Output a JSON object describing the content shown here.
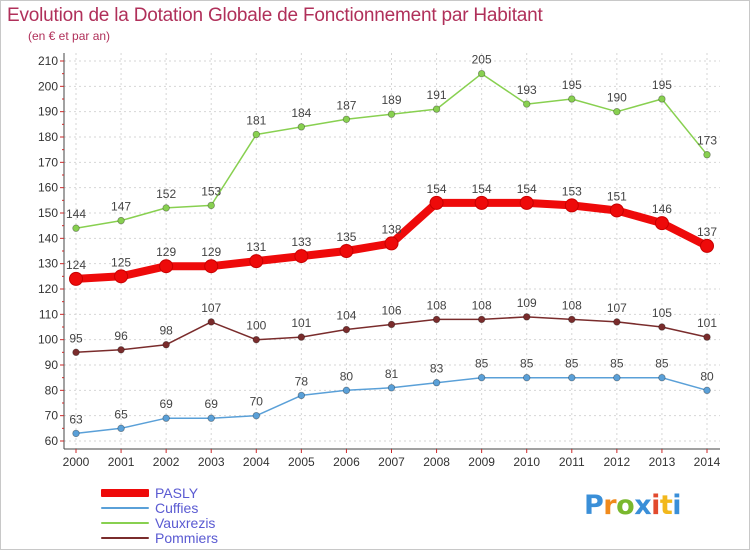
{
  "header": {
    "title": "Evolution de la Dotation Globale de Fonctionnement par Habitant",
    "subtitle": "(en € et par an)"
  },
  "logo": {
    "text": "Proxiti",
    "colors": [
      "#3a8fd8",
      "#f08a1c",
      "#7ab82e",
      "#3a8fd8",
      "#e24a2e",
      "#f2b81c",
      "#3a8fd8"
    ]
  },
  "chart_data": {
    "type": "line",
    "title": "Evolution de la Dotation Globale de Fonctionnement par Habitant",
    "subtitle": "(en € et par an)",
    "xlabel": "",
    "ylabel": "",
    "x": [
      "2000",
      "2001",
      "2002",
      "2003",
      "2004",
      "2005",
      "2006",
      "2007",
      "2008",
      "2009",
      "2010",
      "2011",
      "2012",
      "2013",
      "2014"
    ],
    "ylim": [
      60,
      210
    ],
    "yticks": [
      60,
      70,
      80,
      90,
      100,
      110,
      120,
      130,
      140,
      150,
      160,
      170,
      180,
      190,
      200,
      210
    ],
    "grid": true,
    "legend_position": "bottom-left",
    "series": [
      {
        "name": "PASLY",
        "color": "#ee0a0a",
        "values": [
          124,
          125,
          129,
          129,
          131,
          133,
          135,
          138,
          154,
          154,
          154,
          153,
          151,
          146,
          137
        ]
      },
      {
        "name": "Cuffies",
        "color": "#5aa0d8",
        "values": [
          63,
          65,
          69,
          69,
          70,
          78,
          80,
          81,
          83,
          85,
          85,
          85,
          85,
          85,
          80
        ]
      },
      {
        "name": "Vauxrezis",
        "color": "#88d050",
        "values": [
          144,
          147,
          152,
          153,
          181,
          184,
          187,
          189,
          191,
          205,
          193,
          195,
          190,
          195,
          173
        ]
      },
      {
        "name": "Pommiers",
        "color": "#7a2c2c",
        "values": [
          95,
          96,
          98,
          107,
          100,
          101,
          104,
          106,
          108,
          108,
          109,
          108,
          107,
          105,
          101
        ]
      }
    ]
  }
}
